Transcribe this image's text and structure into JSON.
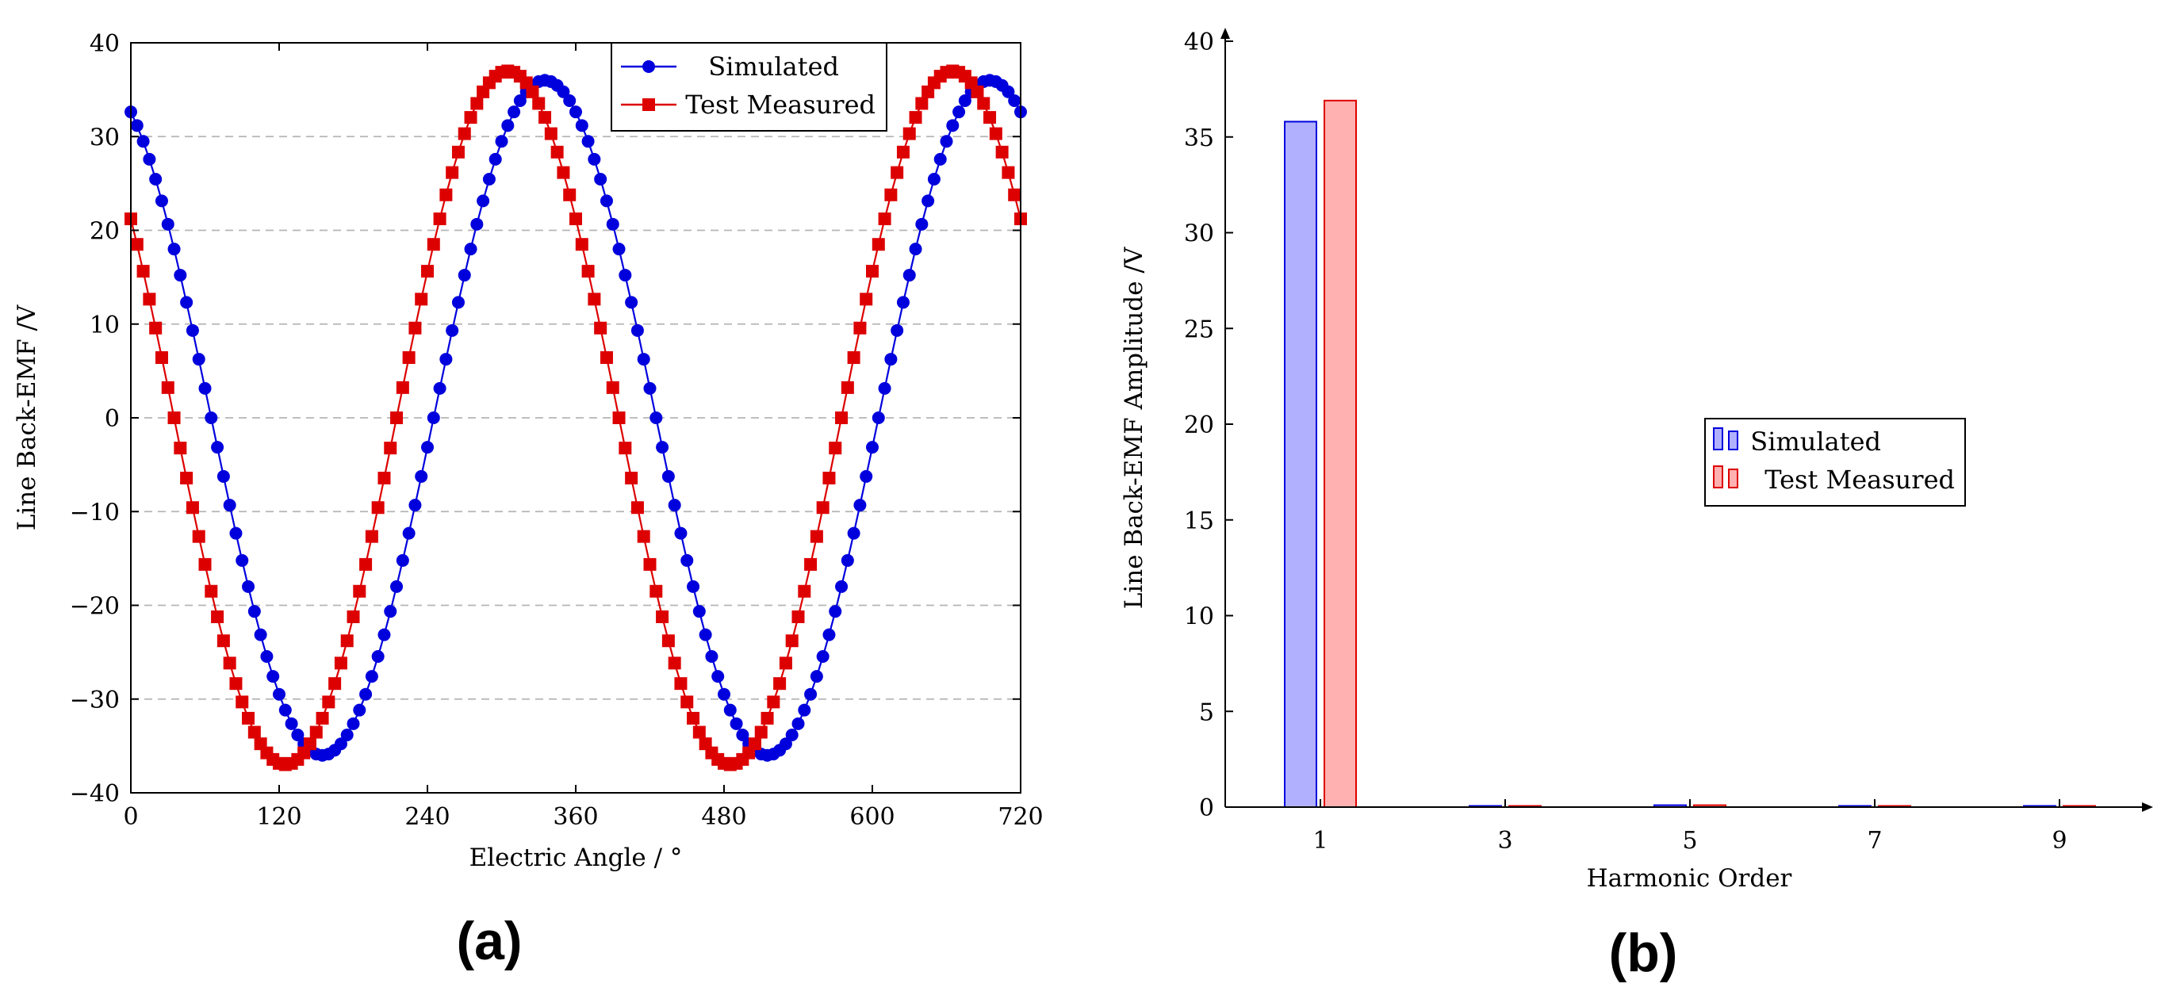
{
  "chart_data": [
    {
      "type": "line",
      "panel_label": "(a)",
      "xlabel": "Electric Angle / °",
      "ylabel": "Line Back-EMF /V",
      "xlim": [
        0,
        720
      ],
      "ylim": [
        -40,
        40
      ],
      "xticks": [
        0,
        120,
        240,
        360,
        480,
        600,
        720
      ],
      "yticks": [
        -40,
        -30,
        -20,
        -10,
        0,
        10,
        20,
        30,
        40
      ],
      "ytick_labels": [
        "−40",
        "−30",
        "−20",
        "−10",
        "0",
        "10",
        "20",
        "30",
        "40"
      ],
      "grid": "horizontal dashed",
      "legend_position": "top-right",
      "series": [
        {
          "name": "Simulated",
          "color": "#0000dd",
          "marker": "circle",
          "amplitude": 36,
          "peak_angle": 335,
          "step": 5,
          "x_start": 0,
          "x_end": 720
        },
        {
          "name": "Test Measured",
          "color": "#dd0000",
          "marker": "square",
          "amplitude": 37,
          "peak_angle": 305,
          "step": 5,
          "x_start": 0,
          "x_end": 720
        }
      ]
    },
    {
      "type": "bar",
      "panel_label": "(b)",
      "xlabel": "Harmonic Order",
      "ylabel": "Line Back-EMF Amplitude /V",
      "categories": [
        "1",
        "3",
        "5",
        "7",
        "9"
      ],
      "ylim": [
        0,
        40
      ],
      "yticks": [
        0,
        5,
        10,
        15,
        20,
        25,
        30,
        35,
        40
      ],
      "legend_position": "center-right",
      "series": [
        {
          "name": "Simulated",
          "stroke": "#0000dd",
          "fill": "#b0b0ff",
          "values": [
            35.8,
            0.05,
            0.1,
            0.05,
            0.05
          ]
        },
        {
          "name": "Test Measured",
          "stroke": "#dd0000",
          "fill": "#ffb0b0",
          "values": [
            36.9,
            0.05,
            0.1,
            0.05,
            0.05
          ]
        }
      ]
    }
  ]
}
